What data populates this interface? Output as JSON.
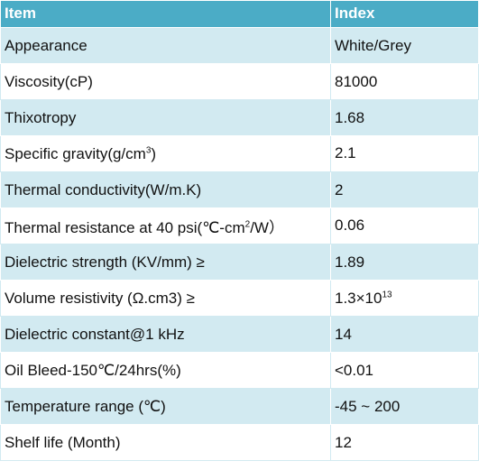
{
  "header": {
    "item": "Item",
    "index": "Index"
  },
  "rows": [
    {
      "item": "Appearance",
      "index": "White/Grey"
    },
    {
      "item": "Viscosity(cP)",
      "index": "81000"
    },
    {
      "item": "Thixotropy",
      "index": "1.68"
    },
    {
      "item_pre": "Specific gravity(g/cm",
      "item_sup": "3",
      "item_post": ")",
      "index": "2.1"
    },
    {
      "item": "Thermal conductivity(W/m.K)",
      "index": "2"
    },
    {
      "item_pre": "Thermal resistance at 40 psi(℃-cm",
      "item_sup": "2",
      "item_post": "/W）",
      "index": "0.06"
    },
    {
      "item": "Dielectric strength (KV/mm) ≥",
      "index": "1.89"
    },
    {
      "item": "Volume resistivity (Ω.cm3) ≥",
      "index_pre": "1.3×10",
      "index_sup": "13"
    },
    {
      "item": "Dielectric constant@1 kHz",
      "index": "14"
    },
    {
      "item": "Oil Bleed-150℃/24hrs(%)",
      "index": "<0.01"
    },
    {
      "item": "Temperature range (℃)",
      "index": "-45 ~ 200"
    },
    {
      "item": "Shelf life (Month)",
      "index": "12"
    }
  ]
}
